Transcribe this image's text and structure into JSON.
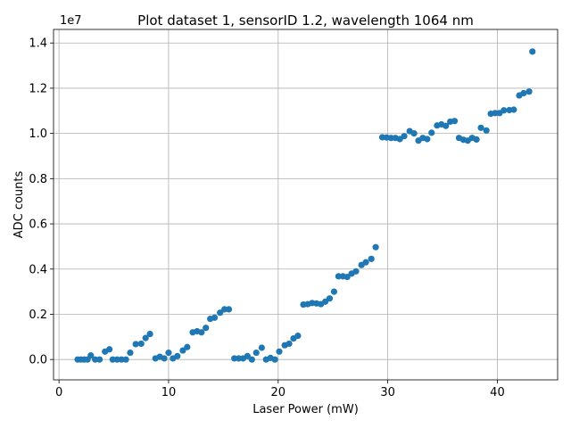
{
  "chart_data": {
    "type": "scatter",
    "title": "Plot dataset 1, sensorID 1.2, wavelength 1064 nm",
    "xlabel": "Laser Power (mW)",
    "ylabel": "ADC counts",
    "offset_text": "1e7",
    "y_scale_factor": 10000000,
    "xlim": [
      -0.5,
      45.5
    ],
    "ylim": [
      -0.09,
      1.46
    ],
    "x_ticks": [
      0,
      10,
      20,
      30,
      40
    ],
    "x_tick_labels": [
      "0",
      "10",
      "20",
      "30",
      "40"
    ],
    "y_ticks": [
      0.0,
      0.2,
      0.4,
      0.6,
      0.8,
      1.0,
      1.2,
      1.4
    ],
    "y_tick_labels": [
      "0.0",
      "0.2",
      "0.4",
      "0.6",
      "0.8",
      "1.0",
      "1.2",
      "1.4"
    ],
    "grid": true,
    "color": "#1f77b4",
    "series": [
      {
        "points": [
          [
            1.7,
            0.0
          ],
          [
            2.0,
            0.0
          ],
          [
            2.3,
            0.0
          ],
          [
            2.6,
            0.0
          ],
          [
            2.9,
            0.018
          ],
          [
            3.3,
            0.0
          ],
          [
            3.7,
            0.0
          ],
          [
            4.2,
            0.035
          ],
          [
            4.6,
            0.045
          ],
          [
            4.9,
            0.0
          ],
          [
            5.3,
            0.0
          ],
          [
            5.7,
            0.0
          ],
          [
            6.1,
            0.0
          ],
          [
            6.5,
            0.03
          ],
          [
            7.0,
            0.068
          ],
          [
            7.5,
            0.07
          ],
          [
            7.9,
            0.095
          ],
          [
            8.3,
            0.113
          ],
          [
            8.8,
            0.005
          ],
          [
            9.2,
            0.012
          ],
          [
            9.6,
            0.005
          ],
          [
            10.0,
            0.03
          ],
          [
            10.4,
            0.005
          ],
          [
            10.8,
            0.015
          ],
          [
            11.3,
            0.04
          ],
          [
            11.7,
            0.055
          ],
          [
            12.2,
            0.12
          ],
          [
            12.6,
            0.125
          ],
          [
            13.0,
            0.12
          ],
          [
            13.4,
            0.14
          ],
          [
            13.8,
            0.18
          ],
          [
            14.2,
            0.185
          ],
          [
            14.7,
            0.207
          ],
          [
            15.1,
            0.222
          ],
          [
            15.5,
            0.222
          ],
          [
            16.0,
            0.005
          ],
          [
            16.4,
            0.005
          ],
          [
            16.8,
            0.005
          ],
          [
            17.2,
            0.015
          ],
          [
            17.6,
            0.0
          ],
          [
            18.0,
            0.03
          ],
          [
            18.5,
            0.052
          ],
          [
            18.9,
            0.0
          ],
          [
            19.3,
            0.007
          ],
          [
            19.7,
            0.0
          ],
          [
            20.1,
            0.035
          ],
          [
            20.6,
            0.063
          ],
          [
            21.0,
            0.07
          ],
          [
            21.4,
            0.093
          ],
          [
            21.8,
            0.105
          ],
          [
            22.3,
            0.243
          ],
          [
            22.7,
            0.245
          ],
          [
            23.1,
            0.25
          ],
          [
            23.5,
            0.248
          ],
          [
            23.9,
            0.245
          ],
          [
            24.3,
            0.256
          ],
          [
            24.7,
            0.27
          ],
          [
            25.1,
            0.3
          ],
          [
            25.5,
            0.368
          ],
          [
            25.9,
            0.368
          ],
          [
            26.3,
            0.365
          ],
          [
            26.7,
            0.38
          ],
          [
            27.1,
            0.39
          ],
          [
            27.6,
            0.418
          ],
          [
            28.0,
            0.43
          ],
          [
            28.5,
            0.445
          ],
          [
            28.9,
            0.497
          ],
          [
            29.5,
            0.983
          ],
          [
            29.9,
            0.982
          ],
          [
            30.3,
            0.98
          ],
          [
            30.7,
            0.98
          ],
          [
            31.1,
            0.975
          ],
          [
            31.5,
            0.988
          ],
          [
            32.0,
            1.01
          ],
          [
            32.4,
            1.0
          ],
          [
            32.8,
            0.968
          ],
          [
            33.2,
            0.98
          ],
          [
            33.6,
            0.975
          ],
          [
            34.0,
            1.003
          ],
          [
            34.5,
            1.035
          ],
          [
            34.9,
            1.04
          ],
          [
            35.3,
            1.033
          ],
          [
            35.7,
            1.052
          ],
          [
            36.1,
            1.055
          ],
          [
            36.5,
            0.98
          ],
          [
            36.9,
            0.972
          ],
          [
            37.3,
            0.968
          ],
          [
            37.7,
            0.98
          ],
          [
            38.1,
            0.973
          ],
          [
            38.5,
            1.025
          ],
          [
            39.0,
            1.013
          ],
          [
            39.4,
            1.087
          ],
          [
            39.8,
            1.09
          ],
          [
            40.2,
            1.09
          ],
          [
            40.6,
            1.102
          ],
          [
            41.1,
            1.103
          ],
          [
            41.5,
            1.105
          ],
          [
            42.0,
            1.168
          ],
          [
            42.4,
            1.178
          ],
          [
            42.9,
            1.185
          ],
          [
            43.2,
            1.362
          ]
        ]
      }
    ]
  }
}
